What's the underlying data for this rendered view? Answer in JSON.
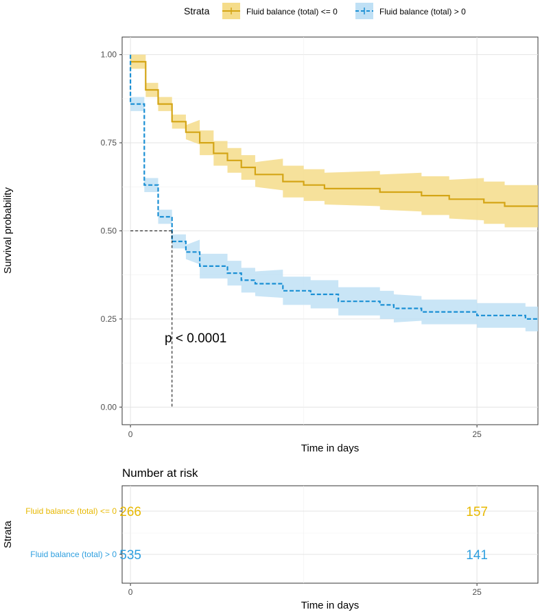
{
  "chart_data": {
    "type": "line",
    "subtype": "kaplan-meier",
    "legend": {
      "title": "Strata",
      "position": "top"
    },
    "series": [
      {
        "name": "Fluid balance (total) <= 0",
        "color": "#e7b800",
        "line_color": "#d4a516",
        "band_color": "#f5dc8a",
        "dash": "solid",
        "steps": [
          [
            0,
            0.98
          ],
          [
            1.1,
            0.98
          ],
          [
            1.1,
            0.9
          ],
          [
            2.0,
            0.9
          ],
          [
            2.0,
            0.86
          ],
          [
            3.0,
            0.86
          ],
          [
            3.0,
            0.81
          ],
          [
            4.0,
            0.81
          ],
          [
            4.0,
            0.78
          ],
          [
            5.0,
            0.78
          ],
          [
            5.0,
            0.75
          ],
          [
            6.0,
            0.75
          ],
          [
            6.0,
            0.72
          ],
          [
            7.0,
            0.72
          ],
          [
            7.0,
            0.7
          ],
          [
            8.0,
            0.7
          ],
          [
            8.0,
            0.68
          ],
          [
            9.0,
            0.68
          ],
          [
            9.0,
            0.66
          ],
          [
            11.0,
            0.66
          ],
          [
            11.0,
            0.64
          ],
          [
            12.5,
            0.64
          ],
          [
            12.5,
            0.63
          ],
          [
            14.0,
            0.63
          ],
          [
            14.0,
            0.62
          ],
          [
            18.0,
            0.62
          ],
          [
            18.0,
            0.61
          ],
          [
            21.0,
            0.61
          ],
          [
            21.0,
            0.6
          ],
          [
            23.0,
            0.6
          ],
          [
            23.0,
            0.59
          ],
          [
            25.5,
            0.59
          ],
          [
            25.5,
            0.58
          ],
          [
            27.0,
            0.58
          ],
          [
            27.0,
            0.57
          ],
          [
            29.4,
            0.57
          ]
        ],
        "band_halfwidth": [
          0.02,
          0.035,
          0.045,
          0.05,
          0.055,
          0.06
        ]
      },
      {
        "name": "Fluid balance (total) > 0",
        "color": "#2e9fdf",
        "line_color": "#1a8fd4",
        "band_color": "#bfe0f5",
        "dash": "dashed",
        "steps": [
          [
            0,
            1.0
          ],
          [
            0.0,
            0.86
          ],
          [
            1.0,
            0.86
          ],
          [
            1.0,
            0.63
          ],
          [
            2.0,
            0.63
          ],
          [
            2.0,
            0.54
          ],
          [
            3.0,
            0.54
          ],
          [
            3.0,
            0.47
          ],
          [
            4.0,
            0.47
          ],
          [
            4.0,
            0.44
          ],
          [
            5.0,
            0.44
          ],
          [
            5.0,
            0.4
          ],
          [
            7.0,
            0.4
          ],
          [
            7.0,
            0.38
          ],
          [
            8.0,
            0.38
          ],
          [
            8.0,
            0.36
          ],
          [
            9.0,
            0.36
          ],
          [
            9.0,
            0.35
          ],
          [
            11.0,
            0.35
          ],
          [
            11.0,
            0.33
          ],
          [
            13.0,
            0.33
          ],
          [
            13.0,
            0.32
          ],
          [
            15.0,
            0.32
          ],
          [
            15.0,
            0.3
          ],
          [
            18.0,
            0.3
          ],
          [
            18.0,
            0.29
          ],
          [
            19.0,
            0.29
          ],
          [
            19.0,
            0.28
          ],
          [
            21.0,
            0.28
          ],
          [
            21.0,
            0.27
          ],
          [
            25.0,
            0.27
          ],
          [
            25.0,
            0.26
          ],
          [
            28.5,
            0.26
          ],
          [
            28.5,
            0.25
          ],
          [
            29.4,
            0.25
          ]
        ],
        "band_halfwidth": [
          0.02,
          0.035,
          0.04,
          0.04,
          0.035,
          0.035
        ]
      }
    ],
    "median_line": {
      "x": 3.0,
      "y": 0.5
    },
    "annotation": "p < 0.0001",
    "annotation_pos": {
      "x": 1.8,
      "y": 0.2
    },
    "xlabel": "Time in days",
    "ylabel": "Survival probability",
    "xlim": [
      -0.6,
      29.4
    ],
    "ylim": [
      -0.05,
      1.05
    ],
    "xticks": [
      0,
      25
    ],
    "yticks": [
      0.0,
      0.25,
      0.5,
      0.75,
      1.0
    ],
    "ytick_labels": [
      "0.00",
      "0.25",
      "0.50",
      "0.75",
      "1.00"
    ],
    "risk_table": {
      "title": "Number at risk",
      "ylabel": "Strata",
      "xlabel": "Time in days",
      "xticks": [
        0,
        25
      ],
      "rows": [
        {
          "label": "Fluid balance (total) <= 0",
          "color": "#e7b800",
          "values": [
            "266",
            "157"
          ]
        },
        {
          "label": "Fluid balance (total) > 0",
          "color": "#2e9fdf",
          "values": [
            "535",
            "141"
          ]
        }
      ]
    }
  }
}
